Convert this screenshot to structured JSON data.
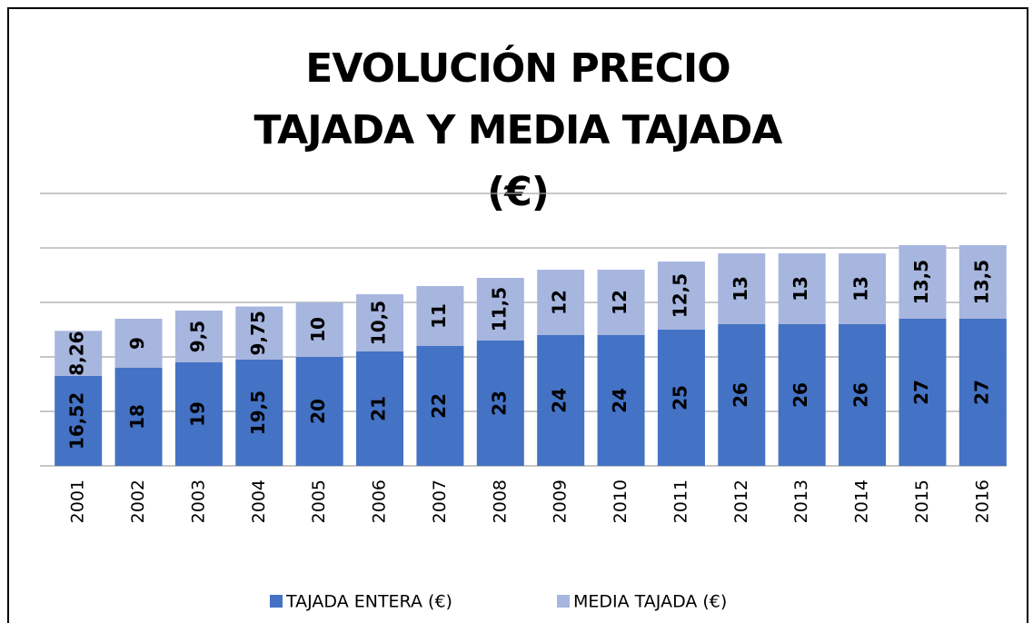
{
  "chart_data": {
    "type": "stacked_bar",
    "title": "EVOLUCIÓN PRECIO TAJADA Y MEDIA TAJADA (€)",
    "categories": [
      "2001",
      "2002",
      "2003",
      "2004",
      "2005",
      "2006",
      "2007",
      "2008",
      "2009",
      "2010",
      "2011",
      "2012",
      "2013",
      "2014",
      "2015",
      "2016"
    ],
    "series": [
      {
        "name": "TAJADA ENTERA (€)",
        "color": "#4472c4",
        "values": [
          16.52,
          18,
          19,
          19.5,
          20,
          21,
          22,
          23,
          24,
          24,
          25,
          26,
          26,
          26,
          27,
          27
        ],
        "value_labels": [
          "16,52",
          "18",
          "19",
          "19,5",
          "20",
          "21",
          "22",
          "23",
          "24",
          "24",
          "25",
          "26",
          "26",
          "26",
          "27",
          "27"
        ]
      },
      {
        "name": "MEDIA TAJADA (€)",
        "color": "#a7b6df",
        "values": [
          8.26,
          9,
          9.5,
          9.75,
          10,
          10.5,
          11,
          11.5,
          12,
          12,
          12.5,
          13,
          13,
          13,
          13.5,
          13.5
        ],
        "value_labels": [
          "8,26",
          "9",
          "9,5",
          "9,75",
          "10",
          "10,5",
          "11",
          "11,5",
          "12",
          "12",
          "12,5",
          "13",
          "13",
          "13",
          "13,5",
          "13,5"
        ]
      }
    ],
    "ylim": [
      0,
      50
    ],
    "yticks": [
      0,
      10,
      20,
      30,
      40,
      50
    ],
    "grid": true,
    "legend": "bottom"
  }
}
